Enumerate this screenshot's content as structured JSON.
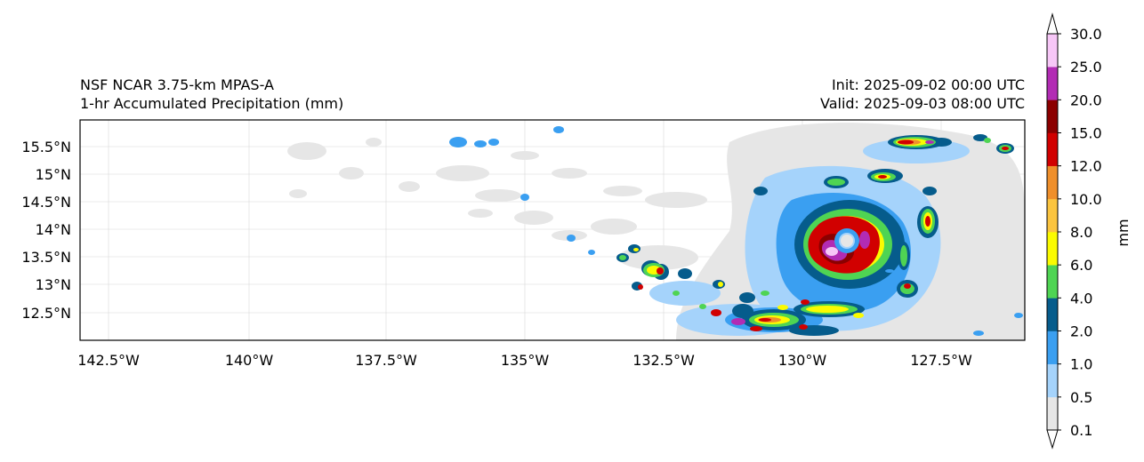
{
  "title": {
    "line1": "NSF NCAR 3.75-km MPAS-A",
    "line2": "1-hr Accumulated Precipitation (mm)"
  },
  "init_label": "Init: 2025-09-02 00:00 UTC",
  "valid_label": "Valid: 2025-09-03 08:00 UTC",
  "lon_ticks": [
    "142.5°W",
    "140°W",
    "137.5°W",
    "135°W",
    "132.5°W",
    "130°W",
    "127.5°W"
  ],
  "lat_ticks": [
    "15.5°N",
    "15°N",
    "14.5°N",
    "14°N",
    "13.5°N",
    "13°N",
    "12.5°N"
  ],
  "colorbar": {
    "label": "mm",
    "levels": [
      "0.1",
      "0.5",
      "1.0",
      "2.0",
      "4.0",
      "6.0",
      "8.0",
      "10.0",
      "12.0",
      "15.0",
      "20.0",
      "25.0",
      "30.0"
    ],
    "colors": [
      "#e6e6e6",
      "#a5d3fb",
      "#3a9ff1",
      "#065c8c",
      "#4fd453",
      "#fbfb00",
      "#fbc43f",
      "#ef8f2b",
      "#d10000",
      "#8b0000",
      "#b22cb4",
      "#f7c7f7"
    ]
  },
  "storm_center": "13.9°N 129.4°W"
}
